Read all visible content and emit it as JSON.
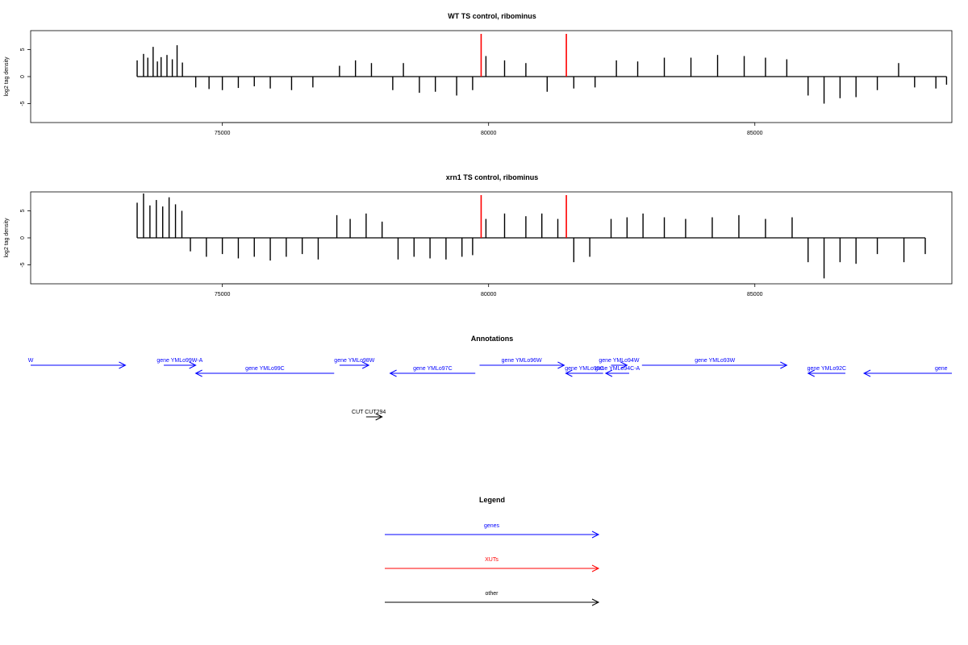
{
  "chart_data": [
    {
      "type": "bar",
      "title": "WT TS control, ribominus",
      "xlabel": "",
      "ylabel": "log2 tag density",
      "xlim": [
        71400,
        88700
      ],
      "ylim": [
        -8.5,
        8.5
      ],
      "x_ticks": [
        75000,
        80000,
        85000
      ],
      "y_ticks": [
        -5,
        0,
        5
      ],
      "grid": false,
      "markers": [
        {
          "x": 79860,
          "color": "#ff0000"
        },
        {
          "x": 81460,
          "color": "#ff0000"
        }
      ],
      "series": [
        {
          "values": [
            [
              73400,
              3.0
            ],
            [
              73520,
              4.2
            ],
            [
              73600,
              3.5
            ],
            [
              73700,
              5.5
            ],
            [
              73780,
              2.8
            ],
            [
              73850,
              3.6
            ],
            [
              73960,
              4.0
            ],
            [
              74060,
              3.2
            ],
            [
              74150,
              5.8
            ],
            [
              74250,
              2.6
            ],
            [
              74500,
              -2.0
            ],
            [
              74750,
              -2.3
            ],
            [
              75000,
              -2.5
            ],
            [
              75300,
              -2.1
            ],
            [
              75600,
              -1.8
            ],
            [
              75900,
              -2.2
            ],
            [
              76300,
              -2.5
            ],
            [
              76700,
              -2.0
            ],
            [
              77200,
              2.0
            ],
            [
              77500,
              3.0
            ],
            [
              77800,
              2.5
            ],
            [
              78200,
              -2.5
            ],
            [
              78400,
              2.5
            ],
            [
              78700,
              -3.0
            ],
            [
              79000,
              -2.8
            ],
            [
              79400,
              -3.5
            ],
            [
              79700,
              -2.5
            ],
            [
              79950,
              3.8
            ],
            [
              80300,
              3.0
            ],
            [
              80700,
              2.5
            ],
            [
              81100,
              -2.8
            ],
            [
              81600,
              -2.2
            ],
            [
              82000,
              -2.0
            ],
            [
              82400,
              3.0
            ],
            [
              82800,
              2.8
            ],
            [
              83300,
              3.5
            ],
            [
              83800,
              3.5
            ],
            [
              84300,
              4.0
            ],
            [
              84800,
              3.8
            ],
            [
              85200,
              3.5
            ],
            [
              85600,
              3.2
            ],
            [
              86000,
              -3.5
            ],
            [
              86300,
              -5.0
            ],
            [
              86600,
              -4.0
            ],
            [
              86900,
              -3.8
            ],
            [
              87300,
              -2.5
            ],
            [
              87700,
              2.5
            ],
            [
              88000,
              -2.0
            ],
            [
              88400,
              -2.2
            ],
            [
              88600,
              -1.5
            ]
          ]
        }
      ]
    },
    {
      "type": "bar",
      "title": "xrn1 TS control, ribominus",
      "xlabel": "",
      "ylabel": "log2 tag density",
      "xlim": [
        71400,
        88700
      ],
      "ylim": [
        -8.5,
        8.5
      ],
      "x_ticks": [
        75000,
        80000,
        85000
      ],
      "y_ticks": [
        -5,
        0,
        5
      ],
      "grid": false,
      "markers": [
        {
          "x": 79860,
          "color": "#ff0000"
        },
        {
          "x": 81460,
          "color": "#ff0000"
        }
      ],
      "series": [
        {
          "values": [
            [
              73400,
              6.5
            ],
            [
              73520,
              8.2
            ],
            [
              73640,
              6.0
            ],
            [
              73760,
              7.0
            ],
            [
              73880,
              5.8
            ],
            [
              74000,
              7.5
            ],
            [
              74120,
              6.2
            ],
            [
              74240,
              5.0
            ],
            [
              74400,
              -2.5
            ],
            [
              74700,
              -3.5
            ],
            [
              75000,
              -3.0
            ],
            [
              75300,
              -3.8
            ],
            [
              75600,
              -3.5
            ],
            [
              75900,
              -4.2
            ],
            [
              76200,
              -3.5
            ],
            [
              76500,
              -3.0
            ],
            [
              76800,
              -4.0
            ],
            [
              77150,
              4.2
            ],
            [
              77400,
              3.5
            ],
            [
              77700,
              4.5
            ],
            [
              78000,
              3.0
            ],
            [
              78300,
              -4.0
            ],
            [
              78600,
              -3.5
            ],
            [
              78900,
              -3.8
            ],
            [
              79200,
              -4.0
            ],
            [
              79500,
              -3.5
            ],
            [
              79700,
              -3.2
            ],
            [
              79950,
              3.5
            ],
            [
              80300,
              4.5
            ],
            [
              80700,
              4.0
            ],
            [
              81000,
              4.5
            ],
            [
              81300,
              3.5
            ],
            [
              81600,
              -4.5
            ],
            [
              81900,
              -3.5
            ],
            [
              82300,
              3.5
            ],
            [
              82600,
              3.8
            ],
            [
              82900,
              4.5
            ],
            [
              83300,
              3.8
            ],
            [
              83700,
              3.5
            ],
            [
              84200,
              3.8
            ],
            [
              84700,
              4.2
            ],
            [
              85200,
              3.5
            ],
            [
              85700,
              3.8
            ],
            [
              86000,
              -4.5
            ],
            [
              86300,
              -7.5
            ],
            [
              86600,
              -4.5
            ],
            [
              86900,
              -4.8
            ],
            [
              87300,
              -3.0
            ],
            [
              87800,
              -4.5
            ],
            [
              88200,
              -3.0
            ]
          ]
        }
      ]
    }
  ],
  "annotations": {
    "title": "Annotations",
    "xlim": [
      71400,
      88700
    ],
    "genes": [
      {
        "label": "W",
        "start": 71400,
        "end": 73180,
        "strand": "+",
        "row": 0,
        "label_x": 71400
      },
      {
        "label": "gene YMLo99W-A",
        "start": 73900,
        "end": 74500,
        "strand": "+",
        "row": 0,
        "label_x": 74200
      },
      {
        "label": "gene YMLo99C",
        "start": 74500,
        "end": 77100,
        "strand": "-",
        "row": 1,
        "label_x": 75800
      },
      {
        "label": "gene YMLo98W",
        "start": 77200,
        "end": 77750,
        "strand": "+",
        "row": 0,
        "label_x": 77480
      },
      {
        "label": "gene YMLo97C",
        "start": 78150,
        "end": 79750,
        "strand": "-",
        "row": 1,
        "label_x": 78950
      },
      {
        "label": "gene YMLo96W",
        "start": 79830,
        "end": 81420,
        "strand": "+",
        "row": 0,
        "label_x": 80620
      },
      {
        "label": "gene YMLo95C",
        "start": 81450,
        "end": 82150,
        "strand": "-",
        "row": 1,
        "label_x": 81800
      },
      {
        "label": "gene YMLo94W",
        "start": 82300,
        "end": 82600,
        "strand": "+",
        "row": 0,
        "label_x": 82450
      },
      {
        "label": "gene YMLo94C-A",
        "start": 82200,
        "end": 82640,
        "strand": "-",
        "row": 1,
        "label_x": 82420
      },
      {
        "label": "gene YMLo93W",
        "start": 82880,
        "end": 85600,
        "strand": "+",
        "row": 0,
        "label_x": 84250
      },
      {
        "label": "gene YMLo92C",
        "start": 86000,
        "end": 86700,
        "strand": "-",
        "row": 1,
        "label_x": 86350
      },
      {
        "label": "gene",
        "start": 87050,
        "end": 88700,
        "strand": "-",
        "row": 1,
        "label_x": 88500
      }
    ],
    "other": [
      {
        "label": "CUT CUT294",
        "start": 77700,
        "end": 78000,
        "strand": "+",
        "label_x": 77750
      }
    ]
  },
  "legend": {
    "title": "Legend",
    "items": [
      {
        "label": "genes",
        "color": "#0000ff"
      },
      {
        "label": "XUTs",
        "color": "#ff0000"
      },
      {
        "label": "other",
        "color": "#000000"
      }
    ]
  }
}
